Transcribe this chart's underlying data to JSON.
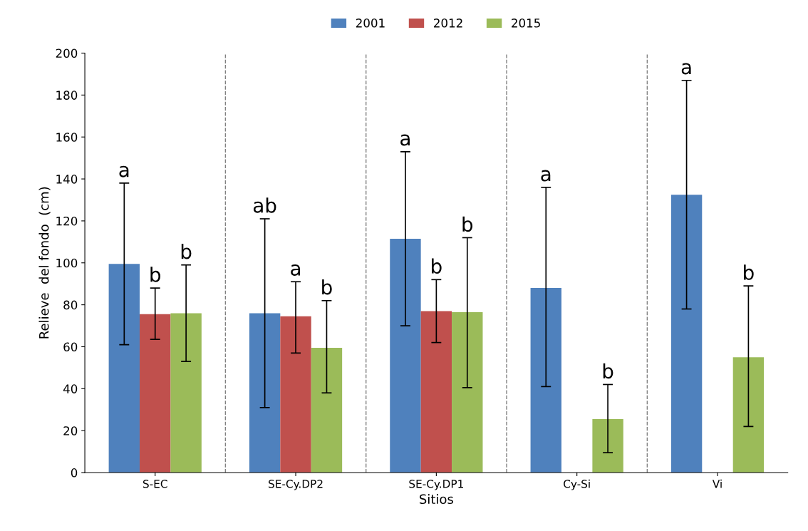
{
  "chart_data": {
    "type": "bar",
    "xlabel": "Sitios",
    "ylabel": "Relieve  del fondo  (cm)",
    "categories": [
      "S-EC",
      "SE-Cy.DP2",
      "SE-Cy.DP1",
      "Cy-Si",
      "Vi"
    ],
    "series": [
      {
        "name": "2001",
        "color": "#4f81bd",
        "values": [
          99.5,
          76,
          111.5,
          88,
          132.5
        ],
        "errors": [
          [
            61,
            138
          ],
          [
            31,
            121
          ],
          [
            70,
            153
          ],
          [
            41,
            136
          ],
          [
            78,
            187
          ]
        ]
      },
      {
        "name": "2012",
        "color": "#c0504d",
        "values": [
          75.5,
          74.5,
          77,
          null,
          null
        ],
        "errors": [
          [
            63.5,
            88
          ],
          [
            57,
            91
          ],
          [
            62,
            92
          ],
          null,
          null
        ]
      },
      {
        "name": "2015",
        "color": "#9bbb59",
        "values": [
          76,
          59.5,
          76.5,
          25.5,
          55
        ],
        "errors": [
          [
            53,
            99
          ],
          [
            38,
            82
          ],
          [
            40.5,
            112
          ],
          [
            9.5,
            42
          ],
          [
            22,
            89
          ]
        ]
      }
    ],
    "annotations": [
      "a",
      "ab",
      "a",
      "a",
      "a",
      "b",
      "a",
      "b",
      "b",
      "b",
      "b",
      "b",
      "b"
    ],
    "ylim": [
      0,
      200
    ],
    "yticks": [
      0,
      20,
      40,
      60,
      80,
      100,
      120,
      140,
      160,
      180,
      200
    ],
    "grid": false,
    "legend": "top"
  }
}
